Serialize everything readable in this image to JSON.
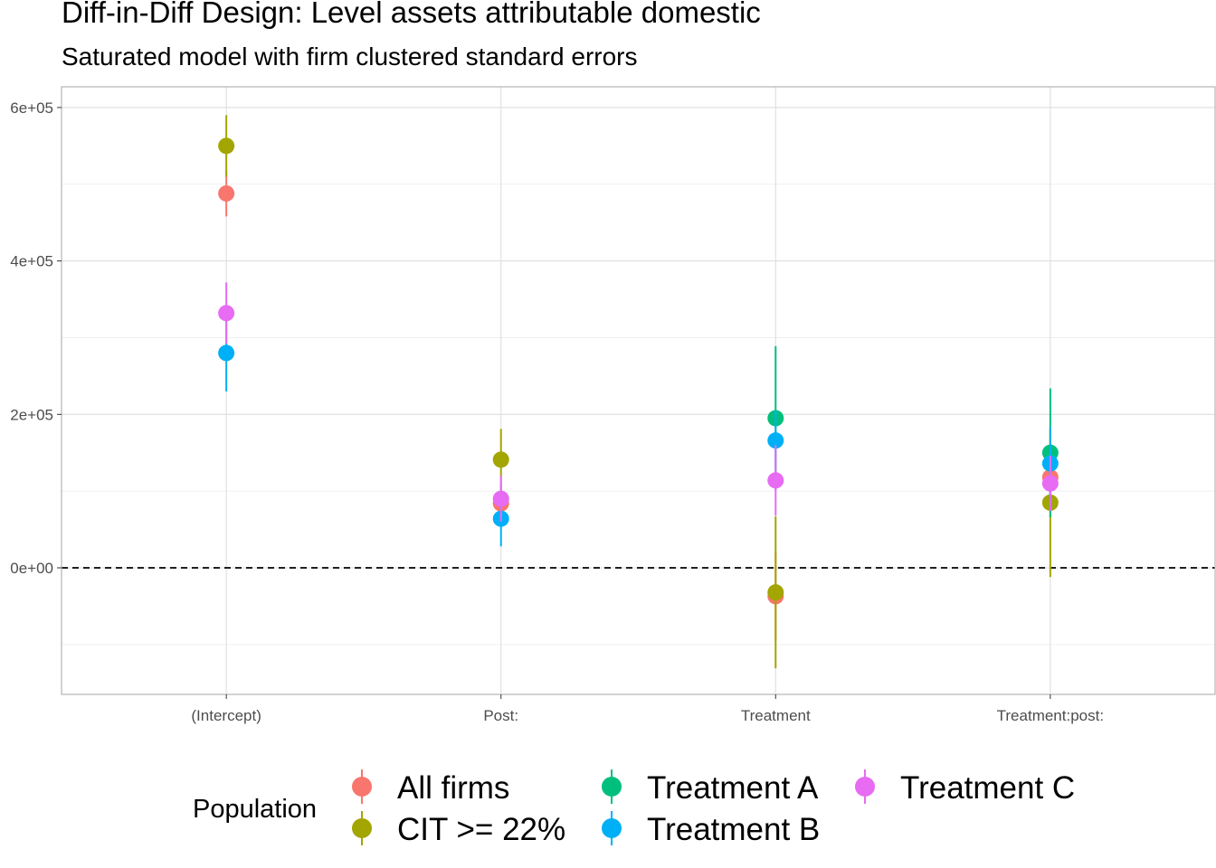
{
  "chart_data": {
    "type": "scatter",
    "title": "Diff-in-Diff Design: Level assets attributable domestic",
    "subtitle": "Saturated model with firm clustered standard errors",
    "xlabel": "",
    "ylabel": "",
    "categories": [
      "(Intercept)",
      "Post:",
      "Treatment",
      "Treatment:post:"
    ],
    "yticks": [
      0,
      200000,
      400000,
      600000
    ],
    "ytick_labels": [
      "0e+00",
      "2e+05",
      "4e+05",
      "6e+05"
    ],
    "ylim": [
      -165000,
      627000
    ],
    "reference_line": {
      "y": 0,
      "style": "dashed"
    },
    "grid": true,
    "legend": {
      "title": "Population",
      "position": "bottom"
    },
    "series": [
      {
        "name": "All firms",
        "color": "#F8766D",
        "values": [
          488000,
          84000,
          -37000,
          118000
        ],
        "lower": [
          458000,
          60000,
          -95000,
          84000
        ],
        "upper": [
          518000,
          108000,
          21000,
          152000
        ]
      },
      {
        "name": "CIT >= 22%",
        "color": "#A3A500",
        "values": [
          550000,
          141000,
          -32000,
          85000
        ],
        "lower": [
          510000,
          101000,
          -131000,
          -12000
        ],
        "upper": [
          590000,
          181000,
          67000,
          182000
        ]
      },
      {
        "name": "Treatment A",
        "color": "#00BF7D",
        "values": [
          null,
          null,
          195000,
          150000
        ],
        "lower": [
          null,
          null,
          101000,
          66000
        ],
        "upper": [
          null,
          null,
          289000,
          234000
        ]
      },
      {
        "name": "Treatment B",
        "color": "#00B0F6",
        "values": [
          280000,
          64000,
          166000,
          136000
        ],
        "lower": [
          230000,
          28000,
          127000,
          88000
        ],
        "upper": [
          330000,
          100000,
          205000,
          184000
        ]
      },
      {
        "name": "Treatment C",
        "color": "#E76BF3",
        "values": [
          332000,
          90000,
          114000,
          110000
        ],
        "lower": [
          292000,
          60000,
          68000,
          74000
        ],
        "upper": [
          372000,
          120000,
          160000,
          146000
        ]
      }
    ]
  }
}
